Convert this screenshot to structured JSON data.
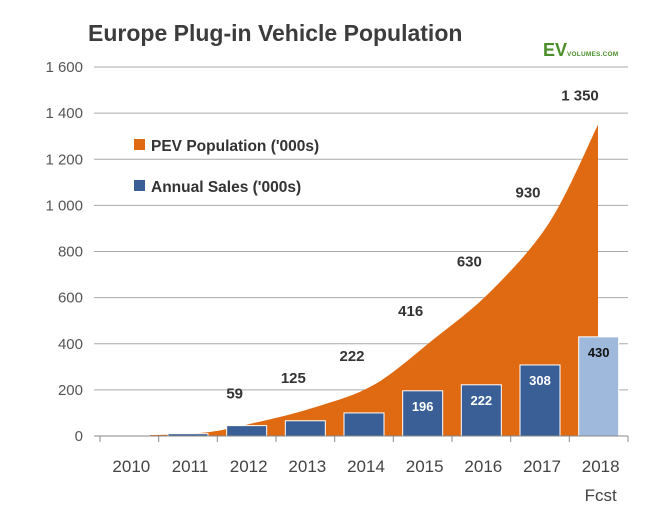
{
  "title": "Europe Plug-in Vehicle Population",
  "brand": {
    "main": "EV",
    "sub": "VOLUMES.COM",
    "color": "#4a8f2a"
  },
  "colors": {
    "area": "#e06a12",
    "bar": "#3a5f97",
    "bar_forecast": "#9fb9dc",
    "grid": "#aaaaaa"
  },
  "chart_data": {
    "type": "bar",
    "categories": [
      "2010",
      "2011",
      "2012",
      "2013",
      "2014",
      "2015",
      "2016",
      "2017",
      "2018"
    ],
    "category_sublabels": [
      "",
      "",
      "",
      "",
      "",
      "",
      "",
      "",
      "Fcst"
    ],
    "series": [
      {
        "name": "PEV Population ('000s)",
        "render": "area",
        "values": [
          2,
          12,
          59,
          125,
          222,
          416,
          630,
          930,
          1350
        ],
        "labels": [
          "",
          "",
          "59",
          "125",
          "222",
          "416",
          "630",
          "930",
          "1 350"
        ]
      },
      {
        "name": "Annual Sales ('000s)",
        "render": "bar",
        "values": [
          2,
          10,
          45,
          66,
          100,
          196,
          222,
          308,
          430
        ],
        "labels": [
          "",
          "",
          "",
          "",
          "",
          "196",
          "222",
          "308",
          "430"
        ],
        "forecast_index": 8
      }
    ],
    "ylim": [
      0,
      1600
    ],
    "yticks": [
      0,
      200,
      400,
      600,
      800,
      1000,
      1200,
      1400,
      1600
    ],
    "ytick_labels": [
      "0",
      "200",
      "400",
      "600",
      "800",
      "1 000",
      "1 200",
      "1 400",
      "1 600"
    ],
    "grid": true,
    "legend_position": "upper-left"
  }
}
